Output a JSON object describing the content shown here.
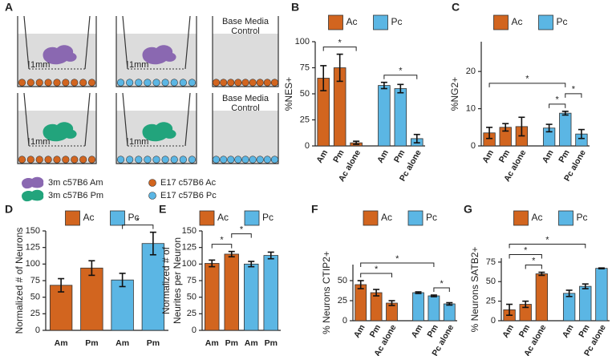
{
  "diagram": {
    "panel": "A",
    "wells": [
      {
        "insert_label": "1mm"
      },
      {
        "insert_label": "1mm"
      },
      {
        "control_label": [
          "Base Media",
          "Control"
        ]
      },
      {
        "insert_label": "1mm"
      },
      {
        "insert_label": "1mm"
      },
      {
        "control_label": [
          "Base Media",
          "Control"
        ]
      }
    ],
    "legend": [
      {
        "label": "3m c57B6 Am",
        "color": "#8a68b1"
      },
      {
        "label": "3m c57B6 Pm",
        "color": "#22a47c"
      },
      {
        "label": "E17 c57B6 Ac",
        "color": "#d2651f"
      },
      {
        "label": "E17 c57B6 Pc",
        "color": "#5bb6e4"
      }
    ]
  },
  "chart_data": [
    {
      "panel": "B",
      "type": "bar",
      "ylabel": "%NES+",
      "categories": [
        "Am",
        "Pm",
        "Ac alone",
        "Am",
        "Pm",
        "Pc alone"
      ],
      "series": [
        {
          "name": "Ac",
          "color": "#d2651f",
          "values": [
            65,
            75,
            3,
            null,
            null,
            null
          ],
          "errors": [
            12,
            13,
            1.5,
            null,
            null,
            null
          ]
        },
        {
          "name": "Pc",
          "color": "#5bb6e4",
          "values": [
            null,
            null,
            null,
            58,
            55,
            7
          ],
          "errors": [
            null,
            null,
            null,
            3,
            4,
            4
          ]
        }
      ],
      "ylim": [
        0,
        100
      ],
      "yticks": [
        0,
        25,
        50,
        75,
        100
      ],
      "significance": [
        {
          "label": "*",
          "from": 0,
          "to": 2
        },
        {
          "label": "*",
          "from": 3,
          "to": 5
        }
      ]
    },
    {
      "panel": "C",
      "type": "bar",
      "ylabel": "%NG2+",
      "categories": [
        "Am",
        "Pm",
        "Ac alone",
        "Am",
        "Pm",
        "Pc alone"
      ],
      "series": [
        {
          "name": "Ac",
          "color": "#d2651f",
          "values": [
            3.5,
            5,
            5.2,
            null,
            null,
            null
          ],
          "errors": [
            1.5,
            1,
            2.5,
            null,
            null,
            null
          ]
        },
        {
          "name": "Pc",
          "color": "#5bb6e4",
          "values": [
            null,
            null,
            null,
            4.8,
            8.8,
            3.2
          ],
          "errors": [
            null,
            null,
            null,
            1,
            0.5,
            1.2
          ]
        }
      ],
      "ylim": [
        0,
        28
      ],
      "yticks": [
        0,
        10,
        20
      ],
      "significance": [
        {
          "label": "*",
          "from": 3,
          "to": 4
        },
        {
          "label": "*",
          "from": 4,
          "to": 5
        },
        {
          "label": "*",
          "from": 0,
          "to": 4
        }
      ]
    },
    {
      "panel": "D",
      "type": "bar",
      "ylabel": "Normalized # of Neurons",
      "categories": [
        "Am",
        "Pm",
        "Am",
        "Pm"
      ],
      "series": [
        {
          "name": "Ac",
          "color": "#d2651f",
          "values": [
            68,
            94,
            null,
            null
          ],
          "errors": [
            10,
            11,
            null,
            null
          ]
        },
        {
          "name": "Pc",
          "color": "#5bb6e4",
          "values": [
            null,
            null,
            76,
            131
          ],
          "errors": [
            null,
            null,
            10,
            17
          ]
        }
      ],
      "ylim": [
        0,
        150
      ],
      "yticks": [
        0,
        25,
        50,
        75,
        100,
        125,
        150
      ],
      "significance": [
        {
          "label": "*",
          "from": 2,
          "to": 3
        }
      ]
    },
    {
      "panel": "E",
      "type": "bar",
      "ylabel": [
        "Normalized # of",
        "Neurites per Neuron"
      ],
      "categories": [
        "Am",
        "Pm",
        "Am",
        "Pm"
      ],
      "series": [
        {
          "name": "Ac",
          "color": "#d2651f",
          "values": [
            101,
            115,
            null,
            null
          ],
          "errors": [
            5,
            4,
            null,
            null
          ]
        },
        {
          "name": "Pc",
          "color": "#5bb6e4",
          "values": [
            null,
            null,
            100,
            113
          ],
          "errors": [
            null,
            null,
            4,
            5
          ]
        }
      ],
      "ylim": [
        0,
        150
      ],
      "yticks": [
        0,
        25,
        50,
        75,
        100,
        125,
        150
      ],
      "significance": [
        {
          "label": "*",
          "from": 0,
          "to": 1
        },
        {
          "label": "*",
          "from": 1,
          "to": 2
        }
      ]
    },
    {
      "panel": "F",
      "type": "bar",
      "ylabel": "% Neurons CTIP2+",
      "categories": [
        "Am",
        "Pm",
        "Ac alone",
        "Am",
        "Pm",
        "Pc alone"
      ],
      "series": [
        {
          "name": "Ac",
          "color": "#d2651f",
          "values": [
            45,
            35,
            22,
            null,
            null,
            null
          ],
          "errors": [
            5,
            4,
            3,
            null,
            null,
            null
          ]
        },
        {
          "name": "Pc",
          "color": "#5bb6e4",
          "values": [
            null,
            null,
            null,
            35,
            31,
            21
          ],
          "errors": [
            null,
            null,
            null,
            1,
            1,
            1.5
          ]
        }
      ],
      "ylim": [
        0,
        70
      ],
      "yticks": [
        0,
        25,
        50
      ],
      "significance": [
        {
          "label": "*",
          "from": 0,
          "to": 2
        },
        {
          "label": "*",
          "from": 4,
          "to": 5
        },
        {
          "label": "*",
          "from": 0,
          "to": 4
        }
      ]
    },
    {
      "panel": "G",
      "type": "bar",
      "ylabel": "% Neurons SATB2+",
      "categories": [
        "Am",
        "Pm",
        "Ac alone",
        "Am",
        "Pm",
        "Pc alone"
      ],
      "series": [
        {
          "name": "Ac",
          "color": "#d2651f",
          "values": [
            14,
            21,
            60,
            null,
            null,
            null
          ],
          "errors": [
            7,
            4,
            2,
            null,
            null,
            null
          ]
        },
        {
          "name": "Pc",
          "color": "#5bb6e4",
          "values": [
            null,
            null,
            null,
            35,
            44,
            67
          ],
          "errors": [
            null,
            null,
            null,
            4,
            3,
            0.5
          ]
        }
      ],
      "ylim": [
        0,
        80
      ],
      "yticks": [
        0,
        25,
        50,
        75
      ],
      "significance": [
        {
          "label": "*",
          "from": 1,
          "to": 2
        },
        {
          "label": "*",
          "from": 0,
          "to": 2
        },
        {
          "label": "*",
          "from": 0,
          "to": 4
        }
      ]
    }
  ]
}
